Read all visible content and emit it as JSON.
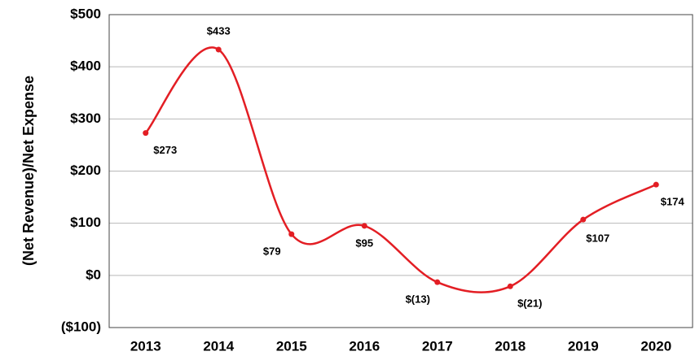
{
  "chart_data": {
    "type": "line",
    "y_label": "(Net Revenue)/Net Expense",
    "categories": [
      "2013",
      "2014",
      "2015",
      "2016",
      "2017",
      "2018",
      "2019",
      "2020"
    ],
    "series": [
      {
        "name": "Net Revenue",
        "color": "#e31e24",
        "values": [
          273,
          433,
          79,
          95,
          -13,
          -21,
          107,
          174
        ],
        "value_labels": [
          "$273",
          "$433",
          "$79",
          "$95",
          "$(13)",
          "$(21)",
          "$107",
          "$174"
        ]
      }
    ],
    "ylim": [
      -100,
      500
    ],
    "yticks": [
      {
        "value": -100,
        "label": "($100)"
      },
      {
        "value": 0,
        "label": "$0"
      },
      {
        "value": 100,
        "label": "$100"
      },
      {
        "value": 200,
        "label": "$200"
      },
      {
        "value": 300,
        "label": "$300"
      },
      {
        "value": 400,
        "label": "$400"
      },
      {
        "value": 500,
        "label": "$500"
      }
    ],
    "grid": true,
    "smooth": true
  }
}
